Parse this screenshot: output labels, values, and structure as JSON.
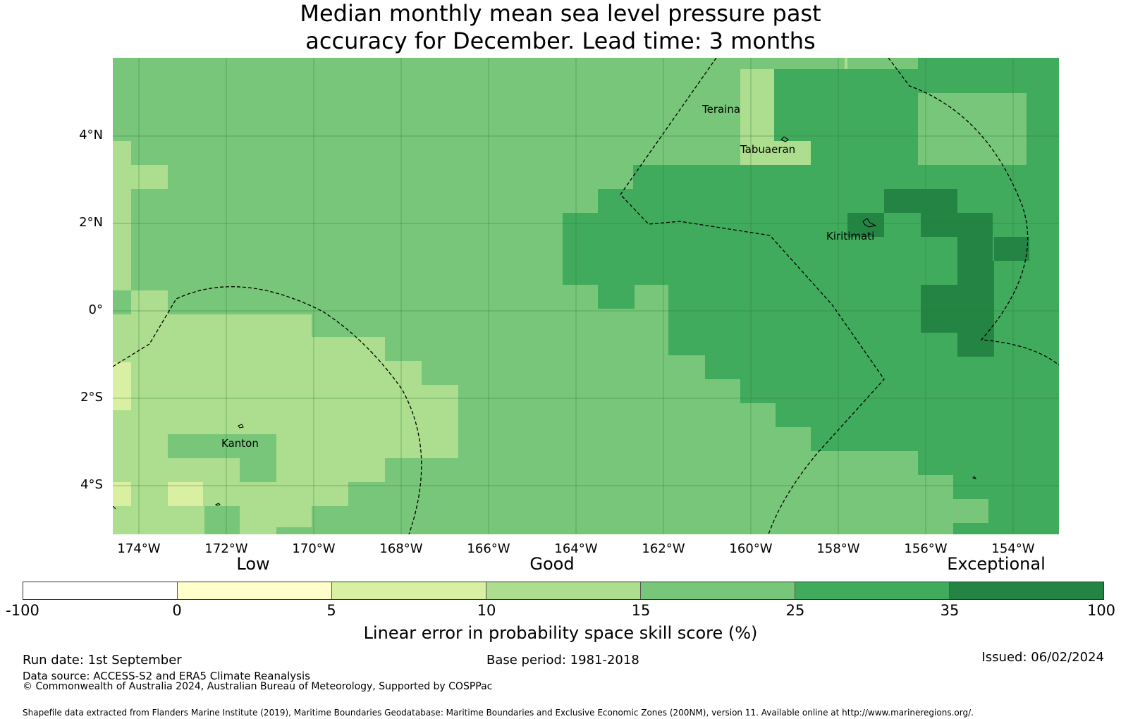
{
  "title_line1": "Median monthly mean sea level pressure past",
  "title_line2": "accuracy for December. Lead time: 3 months",
  "map": {
    "lat_labels": [
      "4°N",
      "2°N",
      "0°",
      "2°S",
      "4°S"
    ],
    "lon_labels": [
      "174°W",
      "172°W",
      "170°W",
      "168°W",
      "166°W",
      "164°W",
      "162°W",
      "160°W",
      "158°W",
      "156°W",
      "154°W"
    ],
    "places": [
      "Teraina",
      "Tabuaeran",
      "Kiritimati",
      "Kanton"
    ]
  },
  "legend": {
    "categories": [
      "Low",
      "Good",
      "Exceptional"
    ],
    "ticks": [
      "-100",
      "0",
      "5",
      "10",
      "15",
      "25",
      "35",
      "100"
    ],
    "colors": [
      "#ffffff",
      "#ffffcc",
      "#d9f0a3",
      "#addd8e",
      "#78c679",
      "#41ab5d",
      "#238443"
    ],
    "title": "Linear error in probability space skill score (%)"
  },
  "footer": {
    "run_date": "Run date: 1st September",
    "base_period": "Base period: 1981-2018",
    "issued": "Issued: 06/02/2024",
    "data_source": "Data source: ACCESS-S2 and ERA5 Climate Reanalysis",
    "copyright": "© Commonwealth of Australia 2024, Australian Bureau of Meteorology, Supported by COSPPac",
    "shapefile": "Shapefile data extracted from Flanders Marine Institute (2019), Maritime Boundaries Geodatabase: Maritime Boundaries and Exclusive Economic Zones (200NM), version 11. Available online at http://www.marineregions.org/."
  }
}
